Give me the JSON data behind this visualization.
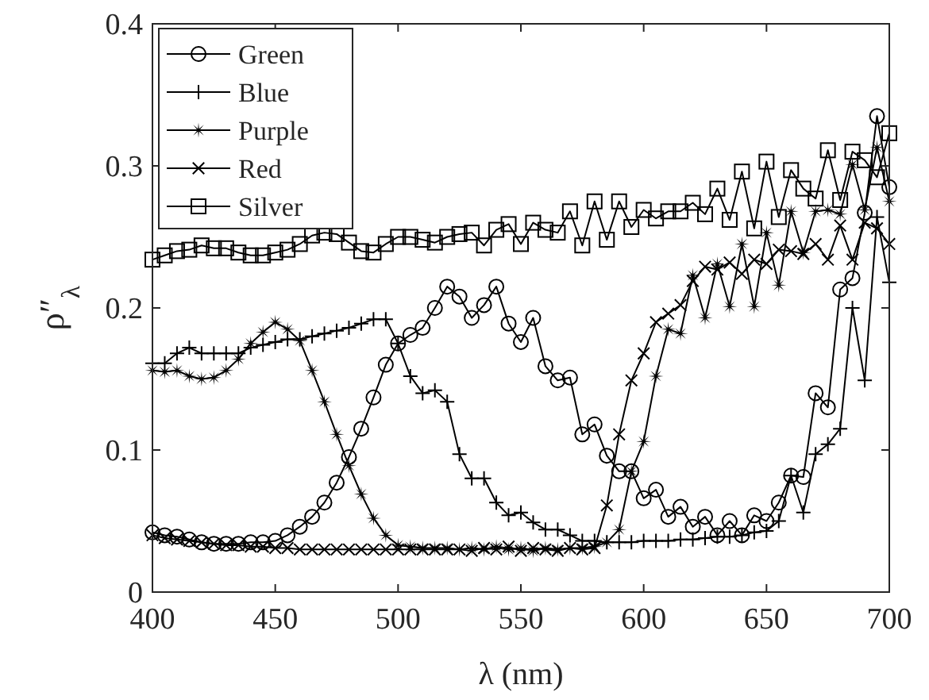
{
  "chart_data": {
    "type": "line",
    "xlabel": "λ (nm)",
    "ylabel": "ρ″$_{λ}$",
    "x": [
      400,
      405,
      410,
      415,
      420,
      425,
      430,
      435,
      440,
      445,
      450,
      455,
      460,
      465,
      470,
      475,
      480,
      485,
      490,
      495,
      500,
      505,
      510,
      515,
      520,
      525,
      530,
      535,
      540,
      545,
      550,
      555,
      560,
      565,
      570,
      575,
      580,
      585,
      590,
      595,
      600,
      605,
      610,
      615,
      620,
      625,
      630,
      635,
      640,
      645,
      650,
      655,
      660,
      665,
      670,
      675,
      680,
      685,
      690,
      695,
      700
    ],
    "series": [
      {
        "name": "Green",
        "color": "#000000",
        "marker": "circle",
        "values": [
          0.042,
          0.04,
          0.039,
          0.037,
          0.035,
          0.034,
          0.034,
          0.034,
          0.035,
          0.035,
          0.036,
          0.04,
          0.046,
          0.053,
          0.063,
          0.077,
          0.095,
          0.115,
          0.137,
          0.16,
          0.175,
          0.181,
          0.186,
          0.2,
          0.215,
          0.208,
          0.193,
          0.202,
          0.215,
          0.189,
          0.176,
          0.193,
          0.159,
          0.149,
          0.151,
          0.111,
          0.118,
          0.096,
          0.085,
          0.085,
          0.066,
          0.072,
          0.053,
          0.06,
          0.046,
          0.053,
          0.04,
          0.05,
          0.04,
          0.054,
          0.05,
          0.063,
          0.082,
          0.081,
          0.14,
          0.13,
          0.213,
          0.221,
          0.267,
          0.335,
          0.285
        ]
      },
      {
        "name": "Blue",
        "color": "#000000",
        "marker": "plus",
        "values": [
          0.161,
          0.161,
          0.168,
          0.172,
          0.168,
          0.168,
          0.168,
          0.168,
          0.172,
          0.174,
          0.176,
          0.178,
          0.178,
          0.18,
          0.182,
          0.184,
          0.186,
          0.189,
          0.192,
          0.192,
          0.175,
          0.152,
          0.14,
          0.142,
          0.134,
          0.097,
          0.08,
          0.08,
          0.063,
          0.054,
          0.056,
          0.049,
          0.044,
          0.044,
          0.04,
          0.036,
          0.036,
          0.035,
          0.035,
          0.035,
          0.036,
          0.036,
          0.036,
          0.037,
          0.037,
          0.038,
          0.039,
          0.039,
          0.04,
          0.042,
          0.043,
          0.05,
          0.082,
          0.056,
          0.097,
          0.104,
          0.115,
          0.2,
          0.149,
          0.264,
          0.218
        ]
      },
      {
        "name": "Purple",
        "color": "#000000",
        "marker": "star",
        "values": [
          0.156,
          0.155,
          0.156,
          0.152,
          0.15,
          0.151,
          0.156,
          0.164,
          0.175,
          0.183,
          0.19,
          0.185,
          0.177,
          0.156,
          0.134,
          0.111,
          0.089,
          0.069,
          0.052,
          0.04,
          0.033,
          0.032,
          0.031,
          0.031,
          0.031,
          0.03,
          0.031,
          0.03,
          0.032,
          0.03,
          0.031,
          0.029,
          0.031,
          0.03,
          0.031,
          0.031,
          0.032,
          0.035,
          0.044,
          0.085,
          0.106,
          0.152,
          0.185,
          0.182,
          0.223,
          0.193,
          0.231,
          0.201,
          0.245,
          0.201,
          0.253,
          0.216,
          0.268,
          0.239,
          0.268,
          0.269,
          0.266,
          0.301,
          0.269,
          0.313,
          0.275
        ]
      },
      {
        "name": "Red",
        "color": "#000000",
        "marker": "cross",
        "values": [
          0.04,
          0.038,
          0.037,
          0.036,
          0.035,
          0.034,
          0.033,
          0.033,
          0.032,
          0.032,
          0.031,
          0.031,
          0.03,
          0.03,
          0.03,
          0.03,
          0.03,
          0.03,
          0.03,
          0.03,
          0.03,
          0.03,
          0.03,
          0.03,
          0.03,
          0.03,
          0.029,
          0.031,
          0.03,
          0.032,
          0.029,
          0.031,
          0.03,
          0.029,
          0.031,
          0.03,
          0.031,
          0.061,
          0.111,
          0.149,
          0.168,
          0.19,
          0.196,
          0.202,
          0.219,
          0.229,
          0.227,
          0.232,
          0.224,
          0.234,
          0.231,
          0.241,
          0.24,
          0.238,
          0.245,
          0.234,
          0.258,
          0.234,
          0.26,
          0.256,
          0.245
        ]
      },
      {
        "name": "Silver",
        "color": "#000000",
        "marker": "square",
        "values": [
          0.234,
          0.237,
          0.24,
          0.241,
          0.244,
          0.242,
          0.242,
          0.239,
          0.237,
          0.237,
          0.239,
          0.241,
          0.245,
          0.251,
          0.253,
          0.252,
          0.246,
          0.24,
          0.239,
          0.245,
          0.25,
          0.25,
          0.248,
          0.246,
          0.25,
          0.252,
          0.253,
          0.244,
          0.255,
          0.259,
          0.245,
          0.26,
          0.255,
          0.253,
          0.268,
          0.244,
          0.275,
          0.248,
          0.275,
          0.257,
          0.269,
          0.263,
          0.268,
          0.268,
          0.274,
          0.266,
          0.284,
          0.262,
          0.296,
          0.256,
          0.303,
          0.264,
          0.297,
          0.284,
          0.277,
          0.311,
          0.276,
          0.31,
          0.304,
          0.292,
          0.323
        ]
      }
    ],
    "xlim": [
      400,
      700
    ],
    "xticks": [
      400,
      450,
      500,
      550,
      600,
      650,
      700
    ],
    "ylim": [
      0,
      0.4
    ],
    "yticks": [
      0,
      0.1,
      0.2,
      0.3,
      0.4
    ],
    "legend": "top left",
    "grid": false
  }
}
